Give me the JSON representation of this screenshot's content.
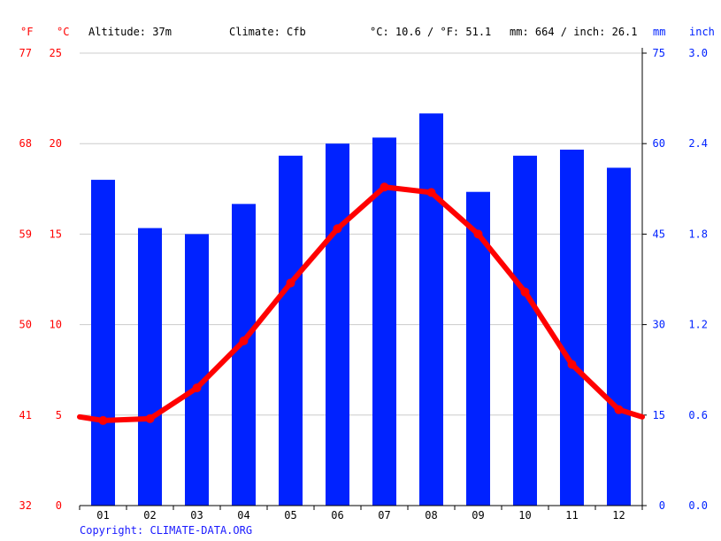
{
  "header": {
    "altitude": "Altitude: 37m",
    "climate": "Climate: Cfb",
    "temp_avg": "°C: 10.6 / °F: 51.1",
    "precip_total": "mm: 664 / inch: 26.1"
  },
  "units": {
    "fahrenheit": "°F",
    "celsius": "°C",
    "mm": "mm",
    "inch": "inch"
  },
  "copyright": "Copyright: CLIMATE-DATA.ORG",
  "colors": {
    "temperature": "#ff0000",
    "precipitation": "#0022ff",
    "grid": "#cccccc",
    "axis": "#000000"
  },
  "chart_data": {
    "type": "bar",
    "categories": [
      "01",
      "02",
      "03",
      "04",
      "05",
      "06",
      "07",
      "08",
      "09",
      "10",
      "11",
      "12"
    ],
    "series": [
      {
        "type": "bar",
        "axis": "right",
        "unit": "mm",
        "values": [
          54,
          46,
          45,
          50,
          58,
          60,
          61,
          65,
          52,
          58,
          59,
          56
        ]
      },
      {
        "type": "line",
        "axis": "left",
        "unit": "°C",
        "values": [
          4.7,
          4.8,
          6.5,
          9.1,
          12.3,
          15.3,
          17.6,
          17.3,
          15.0,
          11.8,
          7.8,
          5.3
        ],
        "edge_start": 4.9,
        "edge_end": 4.9
      }
    ],
    "axes": {
      "celsius": {
        "ticks": [
          "0",
          "5",
          "10",
          "15",
          "20",
          "25"
        ],
        "ylim": [
          0,
          25
        ]
      },
      "fahrenheit": {
        "ticks": [
          "32",
          "41",
          "50",
          "59",
          "68",
          "77"
        ]
      },
      "mm": {
        "ticks": [
          "0",
          "15",
          "30",
          "45",
          "60",
          "75"
        ],
        "ylim": [
          0,
          75
        ]
      },
      "inch": {
        "ticks": [
          "0.0",
          "0.6",
          "1.2",
          "1.8",
          "2.4",
          "3.0"
        ]
      }
    },
    "grid": true
  }
}
